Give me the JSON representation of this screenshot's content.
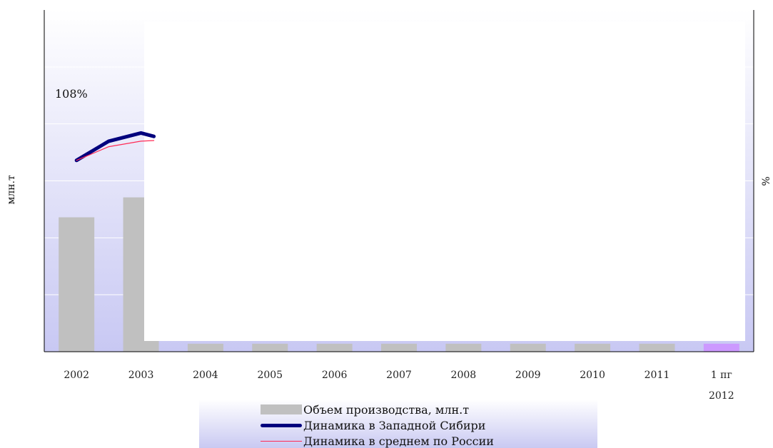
{
  "chart_data": {
    "type": "bar",
    "categories": [
      "2002",
      "2003",
      "2004",
      "2005",
      "2006",
      "2007",
      "2008",
      "2009",
      "2010",
      "2011",
      "1 пг"
    ],
    "category_sublabels": [
      "",
      "",
      "",
      "",
      "",
      "",
      "",
      "",
      "",
      "",
      "2012"
    ],
    "ylabel_left": "млн.т",
    "ylabel_right": "%",
    "series": [
      {
        "name": "Объем производства, млн.т",
        "kind": "bar",
        "values": [
          236,
          271,
          14,
          14,
          14,
          14,
          14,
          14,
          14,
          14,
          14
        ],
        "colors": [
          "#c0c0c0",
          "#c0c0c0",
          "#c0c0c0",
          "#c0c0c0",
          "#c0c0c0",
          "#c0c0c0",
          "#c0c0c0",
          "#c0c0c0",
          "#c0c0c0",
          "#c0c0c0",
          "#cc99ff"
        ]
      },
      {
        "name": "Динамика в Западной Сибири",
        "kind": "line",
        "color": "#00007d",
        "x": [
          "2002",
          "2002.5",
          "2003",
          "2003.2"
        ],
        "values": [
          108.0,
          110.8,
          112.0,
          111.5
        ]
      },
      {
        "name": "Динамика в среднем по России",
        "kind": "line",
        "color": "#ff2a55",
        "x": [
          "2002",
          "2002.5",
          "2003",
          "2003.2"
        ],
        "values": [
          108.0,
          110.0,
          110.8,
          110.9
        ]
      }
    ],
    "annotations": [
      {
        "text": "108%",
        "at": "2002"
      }
    ],
    "ylim_left": [
      0,
      600
    ],
    "ylim_right": [
      80,
      130
    ],
    "grid": true,
    "legend_position": "bottom"
  }
}
